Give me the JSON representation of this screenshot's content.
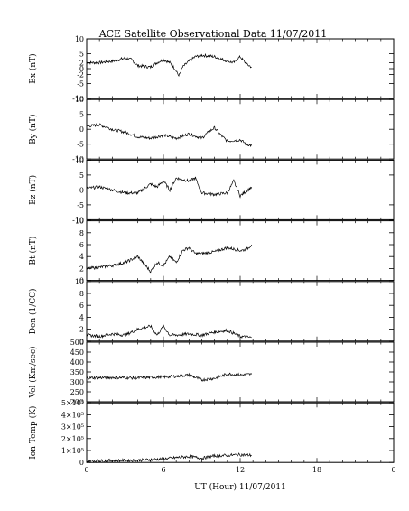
{
  "chart_data": {
    "title": "ACE Satellite Observational Data   11/07/2011",
    "xlabel": "UT (Hour)   11/07/2011",
    "x_ticks": [
      "0",
      "6",
      "12",
      "18",
      "0"
    ],
    "x_range_hours": [
      0,
      24
    ],
    "data_end_hour": 12.9,
    "panels": [
      {
        "id": "bx",
        "type": "line",
        "ylabel": "Bx (nT)",
        "ylim": [
          -10,
          10
        ],
        "y_ticks": [
          "10",
          "5",
          "2",
          "0",
          "-2",
          "-5",
          "-10"
        ],
        "y_tick_values": [
          10,
          5,
          2,
          0,
          -2,
          -5,
          -10
        ],
        "x": [
          0,
          1,
          2,
          3,
          3.5,
          4,
          5,
          5.5,
          6,
          6.5,
          7,
          7.2,
          7.5,
          8,
          8.5,
          9,
          10,
          11,
          11.5,
          12,
          12.5,
          12.9
        ],
        "values": [
          2,
          2,
          2.5,
          3.5,
          3,
          1,
          0.5,
          2,
          3,
          2,
          -0.5,
          -2.5,
          0.5,
          2.5,
          4,
          4.5,
          4,
          2.5,
          2,
          4,
          1.5,
          0.5
        ]
      },
      {
        "id": "by",
        "type": "line",
        "ylabel": "By (nT)",
        "ylim": [
          -10,
          10
        ],
        "y_ticks": [
          "10",
          "5",
          "0",
          "-5",
          "-10"
        ],
        "y_tick_values": [
          10,
          5,
          0,
          -5,
          -10
        ],
        "x": [
          0,
          1,
          2,
          3,
          4,
          5,
          6,
          7,
          8,
          9,
          9.5,
          10,
          10.5,
          11,
          12,
          12.5,
          12.9
        ],
        "values": [
          1,
          1.5,
          0,
          -1,
          -2.5,
          -3,
          -2,
          -3,
          -1.5,
          -3,
          -1,
          0.5,
          -2,
          -4,
          -3.5,
          -5,
          -5.5
        ]
      },
      {
        "id": "bz",
        "type": "line",
        "ylabel": "Bz (nT)",
        "ylim": [
          -10,
          10
        ],
        "y_ticks": [
          "10",
          "5",
          "0",
          "-5",
          "-10"
        ],
        "y_tick_values": [
          10,
          5,
          0,
          -5,
          -10
        ],
        "x": [
          0,
          1,
          2,
          3,
          4,
          5,
          5.5,
          6,
          6.5,
          7,
          7.5,
          8,
          8.5,
          9,
          10,
          11,
          11.5,
          12,
          12.9
        ],
        "values": [
          0.5,
          1,
          0,
          -1,
          -1,
          2,
          1,
          3,
          0,
          4,
          3.5,
          3,
          4,
          -1,
          -1.5,
          -1,
          3,
          -2,
          1
        ]
      },
      {
        "id": "bt",
        "type": "line",
        "ylabel": "Bt (nT)",
        "ylim": [
          0,
          10
        ],
        "y_ticks": [
          "10",
          "8",
          "6",
          "4",
          "2",
          "0"
        ],
        "y_tick_values": [
          10,
          8,
          6,
          4,
          2,
          0
        ],
        "x": [
          0,
          1,
          2,
          3,
          4,
          5,
          5.5,
          6,
          6.5,
          7,
          7.5,
          8,
          8.5,
          9,
          10,
          11,
          12,
          12.5,
          12.9
        ],
        "values": [
          2,
          2.2,
          2.5,
          3,
          4,
          1.5,
          3,
          2.5,
          4,
          3,
          5,
          5.5,
          4.5,
          4.5,
          4.8,
          5.5,
          5,
          5.2,
          6
        ]
      },
      {
        "id": "den",
        "type": "line",
        "ylabel": "Den (1/CC)",
        "ylim": [
          0,
          10
        ],
        "y_ticks": [
          "10",
          "8",
          "6",
          "4",
          "2",
          "0"
        ],
        "y_tick_values": [
          10,
          8,
          6,
          4,
          2,
          0
        ],
        "x": [
          0,
          1,
          2,
          3,
          4,
          5,
          5.5,
          6,
          6.5,
          7,
          8,
          9,
          10,
          11,
          12,
          12.9
        ],
        "values": [
          1,
          0.8,
          1.2,
          1,
          2,
          2.5,
          1,
          2.5,
          1,
          1,
          1.2,
          1,
          1.5,
          1.8,
          0.8,
          0.6
        ]
      },
      {
        "id": "vel",
        "type": "line",
        "ylabel": "Vel (Km/sec)",
        "ylim": [
          200,
          500
        ],
        "y_ticks": [
          "500",
          "450",
          "400",
          "350",
          "300",
          "250",
          "200"
        ],
        "y_tick_values": [
          500,
          450,
          400,
          350,
          300,
          250,
          200
        ],
        "x": [
          0,
          2,
          4,
          6,
          7,
          8,
          9,
          10,
          11,
          12,
          12.9
        ],
        "values": [
          320,
          322,
          320,
          325,
          328,
          335,
          310,
          318,
          340,
          335,
          338
        ]
      },
      {
        "id": "temp",
        "type": "line",
        "ylabel": "Ion Temp (K)",
        "ylim": [
          0,
          500000
        ],
        "y_ticks": [
          "5×10⁵",
          "4×10⁵",
          "3×10⁵",
          "2×10⁵",
          "1×10⁵",
          "0"
        ],
        "y_tick_values": [
          500000,
          400000,
          300000,
          200000,
          100000,
          0
        ],
        "x": [
          0,
          2,
          4,
          6,
          7,
          8,
          9,
          10,
          11,
          12,
          12.9
        ],
        "values": [
          12000,
          15000,
          18000,
          30000,
          40000,
          50000,
          35000,
          55000,
          60000,
          65000,
          60000
        ]
      }
    ]
  }
}
